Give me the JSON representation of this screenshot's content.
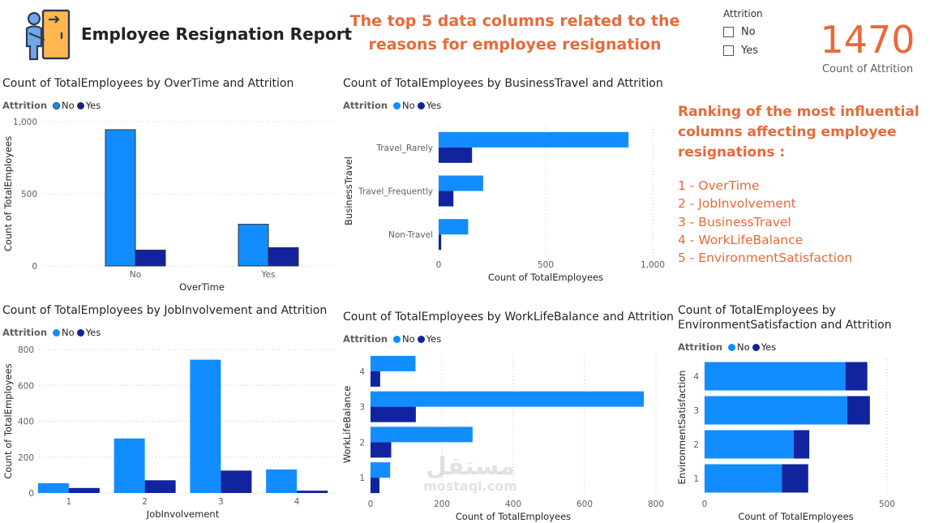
{
  "header": {
    "title": "Employee Resignation Report",
    "subtitle": "The top 5 data columns related to the reasons for employee resignation"
  },
  "slicer": {
    "title": "Attrition",
    "options": [
      "No",
      "Yes"
    ]
  },
  "kpi": {
    "value": "1470",
    "label": "Count of Attrition"
  },
  "ranking": {
    "title": "Ranking of the most influential columns affecting employee resignations :",
    "items": [
      "1 - OverTime",
      "2 - JobInvolvement",
      "3 - BusinessTravel",
      "4 - WorkLifeBalance",
      "5 - EnvironmentSatisfaction"
    ]
  },
  "watermark": {
    "arabic": "مستقل",
    "latin": "mostaql.com"
  },
  "colors": {
    "no": "#118DFF",
    "yes": "#12239E",
    "accent": "#E8693A"
  },
  "chart_data": [
    {
      "id": "overtime",
      "type": "bar",
      "orientation": "vertical",
      "title": "Count of TotalEmployees by OverTime and Attrition",
      "legend_title": "Attrition",
      "xlabel": "OverTime",
      "ylabel": "Count of TotalEmployees",
      "categories": [
        "No",
        "Yes"
      ],
      "series": [
        {
          "name": "No",
          "values": [
            944,
            289
          ]
        },
        {
          "name": "Yes",
          "values": [
            110,
            127
          ]
        }
      ],
      "ylim": [
        0,
        1000
      ],
      "ticks": [
        0,
        500,
        1000
      ],
      "tick_labels": [
        "0",
        "500",
        "1,000"
      ],
      "grid": true
    },
    {
      "id": "businesstravel",
      "type": "bar",
      "orientation": "horizontal",
      "title": "Count of TotalEmployees by BusinessTravel and Attrition",
      "legend_title": "Attrition",
      "xlabel": "Count of TotalEmployees",
      "ylabel": "BusinessTravel",
      "categories": [
        "Travel_Rarely",
        "Travel_Frequently",
        "Non-Travel"
      ],
      "series": [
        {
          "name": "No",
          "values": [
            887,
            208,
            138
          ]
        },
        {
          "name": "Yes",
          "values": [
            156,
            69,
            12
          ]
        }
      ],
      "xlim": [
        0,
        1000
      ],
      "ticks": [
        0,
        500,
        1000
      ],
      "tick_labels": [
        "0",
        "500",
        "1,000"
      ],
      "grid": true
    },
    {
      "id": "jobinvolvement",
      "type": "bar",
      "orientation": "vertical",
      "title": "Count of TotalEmployees by JobInvolvement and Attrition",
      "legend_title": "Attrition",
      "xlabel": "JobInvolvement",
      "ylabel": "Count of TotalEmployees",
      "categories": [
        "1",
        "2",
        "3",
        "4"
      ],
      "series": [
        {
          "name": "No",
          "values": [
            55,
            304,
            743,
            131
          ]
        },
        {
          "name": "Yes",
          "values": [
            28,
            71,
            125,
            13
          ]
        }
      ],
      "ylim": [
        0,
        800
      ],
      "ticks": [
        0,
        200,
        400,
        600,
        800
      ],
      "tick_labels": [
        "0",
        "200",
        "400",
        "600",
        "800"
      ],
      "grid": true
    },
    {
      "id": "worklifebalance",
      "type": "bar",
      "orientation": "horizontal",
      "title": "Count of TotalEmployees by WorkLifeBalance and Attrition",
      "legend_title": "Attrition",
      "xlabel": "Count of TotalEmployees",
      "ylabel": "WorkLifeBalance",
      "categories": [
        "4",
        "3",
        "2",
        "1"
      ],
      "series": [
        {
          "name": "No",
          "values": [
            126,
            766,
            286,
            55
          ]
        },
        {
          "name": "Yes",
          "values": [
            27,
            127,
            58,
            25
          ]
        }
      ],
      "xlim": [
        0,
        800
      ],
      "ticks": [
        0,
        200,
        400,
        600,
        800
      ],
      "tick_labels": [
        "0",
        "200",
        "400",
        "600",
        "800"
      ],
      "grid": true
    },
    {
      "id": "envsatisfaction",
      "type": "bar",
      "orientation": "horizontal",
      "stacked": true,
      "title": "Count of TotalEmployees by EnvironmentSatisfaction and Attrition",
      "legend_title": "Attrition",
      "xlabel": "Count of TotalEmployees",
      "ylabel": "EnvironmentSatisfaction",
      "categories": [
        "4",
        "3",
        "2",
        "1"
      ],
      "series": [
        {
          "name": "No",
          "values": [
            386,
            391,
            244,
            212
          ]
        },
        {
          "name": "Yes",
          "values": [
            60,
            62,
            43,
            72
          ]
        }
      ],
      "xlim": [
        0,
        500
      ],
      "ticks": [
        0,
        500
      ],
      "tick_labels": [
        "0",
        "500"
      ],
      "grid": true
    }
  ]
}
